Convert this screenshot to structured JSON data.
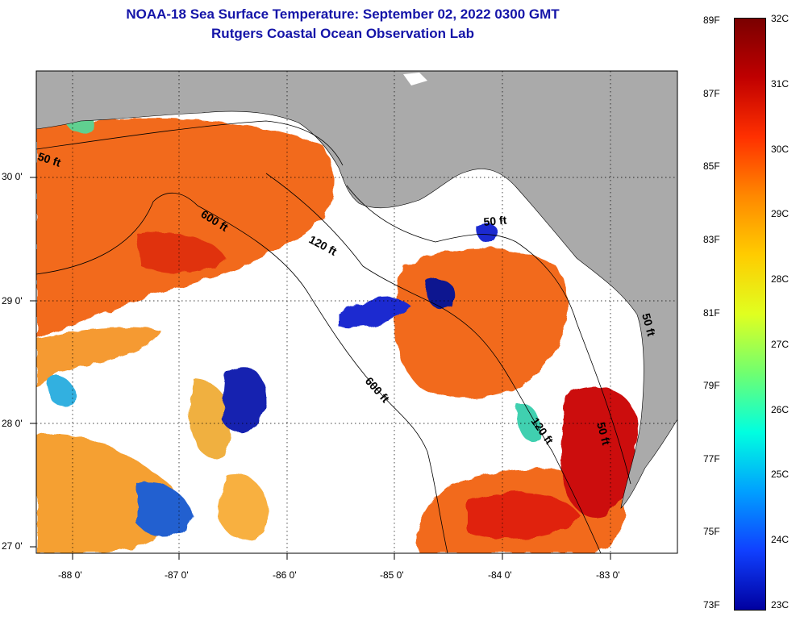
{
  "title": {
    "line1": "NOAA-18 Sea Surface Temperature:  September 02, 2022 0300 GMT",
    "line2": "Rutgers Coastal Ocean Observation Lab"
  },
  "map": {
    "lat_labels": [
      "30 0'",
      "29 0'",
      "28 0'",
      "27 0'"
    ],
    "lon_labels": [
      "-88 0'",
      "-87 0'",
      "-86 0'",
      "-85 0'",
      "-84 0'",
      "-83 0'"
    ],
    "contour_labels": [
      "50 ft",
      "600 ft",
      "120 ft",
      "50 ft",
      "600 ft",
      "120 ft",
      "50 ft",
      "50 ft"
    ],
    "colors": {
      "land": "#aaaaaa",
      "cloud": "#ffffff",
      "warm": "#f26a1e",
      "hot": "#cc1010",
      "cold": "#1222b0",
      "frame": "#000000"
    }
  },
  "colorbar": {
    "fahrenheit": [
      "89F",
      "87F",
      "85F",
      "83F",
      "81F",
      "79F",
      "77F",
      "75F",
      "73F"
    ],
    "celsius": [
      "32C",
      "31C",
      "30C",
      "29C",
      "28C",
      "27C",
      "26C",
      "25C",
      "24C",
      "23C"
    ],
    "gradient": [
      "#7a0000",
      "#c00000",
      "#ff3000",
      "#ff8800",
      "#ffcc00",
      "#e0ff20",
      "#70ff70",
      "#00ffe0",
      "#00a0ff",
      "#1040ff",
      "#0000a0"
    ]
  }
}
